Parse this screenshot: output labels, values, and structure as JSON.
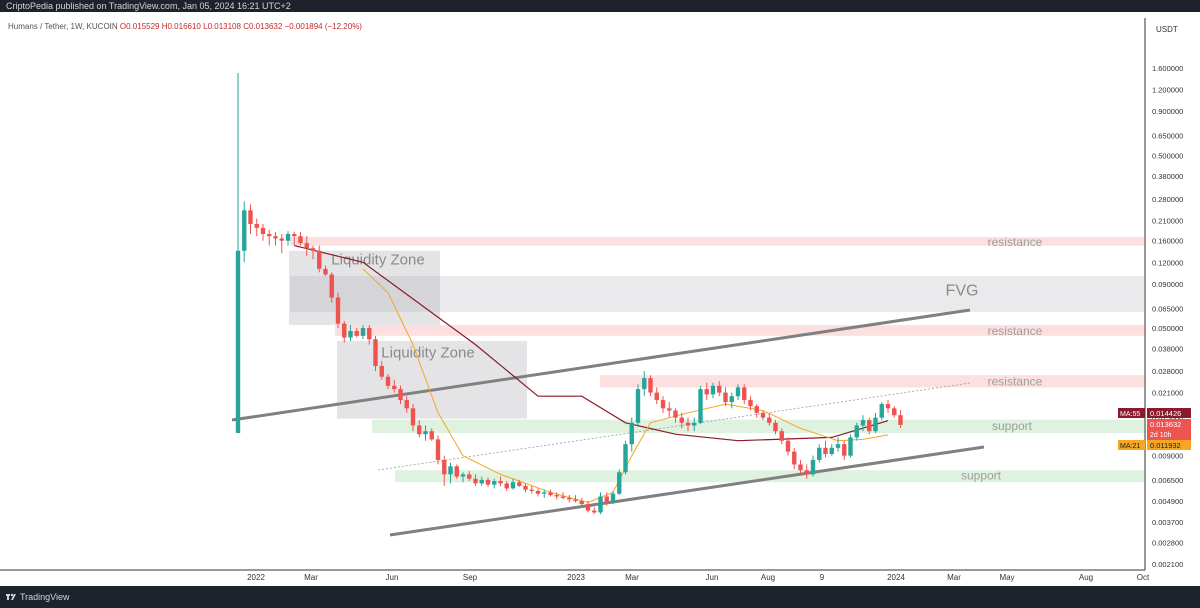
{
  "header": {
    "published": "CriptoPedia published on TradingView.com, Jan 05, 2024 16:21 UTC+2"
  },
  "symbol": {
    "name": "Humans / Tether, 1W, KUCOIN",
    "open": "O0.015529",
    "high": "H0.016610",
    "low": "L0.013108",
    "close": "C0.013632",
    "change": "−0.001894 (−12.20%)"
  },
  "footer": {
    "brand": "TradingView"
  },
  "colors": {
    "up": "#26a69a",
    "down": "#ef5350",
    "ma55": "#8b1a2b",
    "ma21": "#f5a623"
  },
  "chart_data": {
    "type": "candlestick",
    "log_scale": true,
    "currency_label": "USDT",
    "y_ticks": [
      "1.600000",
      "1.200000",
      "0.900000",
      "0.650000",
      "0.500000",
      "0.380000",
      "0.280000",
      "0.210000",
      "0.160000",
      "0.120000",
      "0.090000",
      "0.065000",
      "0.050000",
      "0.038000",
      "0.028000",
      "0.021000",
      "0.015000",
      "0.012000",
      "0.009000",
      "0.006500",
      "0.004900",
      "0.003700",
      "0.002800",
      "0.002100"
    ],
    "x_ticks": [
      "2022",
      "Mar",
      "Jun",
      "Sep",
      "2023",
      "Mar",
      "Jun",
      "Aug",
      "9",
      "2024",
      "Mar",
      "May",
      "Aug",
      "Oct"
    ],
    "price_labels": [
      {
        "text": "MA:55",
        "value": "0.014426"
      },
      {
        "text": "",
        "value": "0.013632",
        "sub": "2d 10h"
      },
      {
        "text": "MA:21",
        "value": "0.011932"
      }
    ],
    "annotations": {
      "zones": [
        {
          "label": "resistance",
          "kind": "resistance"
        },
        {
          "label": "FVG",
          "kind": "fvg"
        },
        {
          "label": "resistance",
          "kind": "resistance"
        },
        {
          "label": "resistance",
          "kind": "resistance"
        },
        {
          "label": "support",
          "kind": "support"
        },
        {
          "label": "support",
          "kind": "support"
        },
        {
          "label": "Liquidity Zone",
          "kind": "liquidity"
        },
        {
          "label": "Liquidity Zone",
          "kind": "liquidity"
        }
      ]
    },
    "candles": [
      [
        0.0122,
        1.5,
        0.0122,
        0.14
      ],
      [
        0.14,
        0.27,
        0.12,
        0.24
      ],
      [
        0.24,
        0.26,
        0.175,
        0.2
      ],
      [
        0.2,
        0.215,
        0.17,
        0.19
      ],
      [
        0.19,
        0.2,
        0.16,
        0.175
      ],
      [
        0.175,
        0.185,
        0.15,
        0.17
      ],
      [
        0.17,
        0.18,
        0.15,
        0.165
      ],
      [
        0.165,
        0.175,
        0.135,
        0.16
      ],
      [
        0.16,
        0.182,
        0.15,
        0.175
      ],
      [
        0.175,
        0.18,
        0.15,
        0.17
      ],
      [
        0.17,
        0.18,
        0.15,
        0.155
      ],
      [
        0.155,
        0.17,
        0.13,
        0.145
      ],
      [
        0.145,
        0.15,
        0.125,
        0.14
      ],
      [
        0.14,
        0.15,
        0.105,
        0.11
      ],
      [
        0.11,
        0.115,
        0.1,
        0.102
      ],
      [
        0.102,
        0.105,
        0.07,
        0.075
      ],
      [
        0.075,
        0.08,
        0.05,
        0.053
      ],
      [
        0.053,
        0.055,
        0.041,
        0.044
      ],
      [
        0.044,
        0.052,
        0.042,
        0.048
      ],
      [
        0.048,
        0.05,
        0.044,
        0.045
      ],
      [
        0.045,
        0.052,
        0.043,
        0.05
      ],
      [
        0.05,
        0.052,
        0.04,
        0.043
      ],
      [
        0.043,
        0.045,
        0.028,
        0.03
      ],
      [
        0.03,
        0.032,
        0.025,
        0.026
      ],
      [
        0.026,
        0.027,
        0.022,
        0.023
      ],
      [
        0.023,
        0.025,
        0.021,
        0.022
      ],
      [
        0.022,
        0.023,
        0.018,
        0.019
      ],
      [
        0.019,
        0.02,
        0.016,
        0.017
      ],
      [
        0.017,
        0.018,
        0.0125,
        0.0135
      ],
      [
        0.0135,
        0.0145,
        0.0115,
        0.012
      ],
      [
        0.012,
        0.0135,
        0.011,
        0.0125
      ],
      [
        0.0125,
        0.013,
        0.011,
        0.0112
      ],
      [
        0.0112,
        0.0118,
        0.008,
        0.0085
      ],
      [
        0.0085,
        0.009,
        0.006,
        0.007
      ],
      [
        0.007,
        0.0082,
        0.0062,
        0.0078
      ],
      [
        0.0078,
        0.008,
        0.0066,
        0.0068
      ],
      [
        0.0068,
        0.0072,
        0.0063,
        0.007
      ],
      [
        0.007,
        0.0073,
        0.0064,
        0.0066
      ],
      [
        0.0066,
        0.007,
        0.006,
        0.0062
      ],
      [
        0.0062,
        0.0068,
        0.006,
        0.0065
      ],
      [
        0.0065,
        0.0067,
        0.0059,
        0.0061
      ],
      [
        0.0061,
        0.0066,
        0.0058,
        0.0064
      ],
      [
        0.0064,
        0.0068,
        0.006,
        0.0062
      ],
      [
        0.0062,
        0.0064,
        0.0056,
        0.0058
      ],
      [
        0.0058,
        0.0066,
        0.0057,
        0.0063
      ],
      [
        0.0063,
        0.0065,
        0.0059,
        0.006
      ],
      [
        0.006,
        0.0062,
        0.0055,
        0.0057
      ],
      [
        0.0057,
        0.006,
        0.0054,
        0.0056
      ],
      [
        0.0056,
        0.0058,
        0.0052,
        0.0054
      ],
      [
        0.0054,
        0.0057,
        0.0051,
        0.0055
      ],
      [
        0.0055,
        0.0057,
        0.0052,
        0.0053
      ],
      [
        0.0053,
        0.0055,
        0.005,
        0.0052
      ],
      [
        0.0052,
        0.0055,
        0.005,
        0.0051
      ],
      [
        0.0051,
        0.0053,
        0.0048,
        0.005
      ],
      [
        0.005,
        0.0053,
        0.0048,
        0.0049
      ],
      [
        0.0049,
        0.0051,
        0.0046,
        0.0047
      ],
      [
        0.0047,
        0.0049,
        0.0042,
        0.0043
      ],
      [
        0.0043,
        0.0045,
        0.0041,
        0.0042
      ],
      [
        0.0042,
        0.0055,
        0.0041,
        0.0052
      ],
      [
        0.0052,
        0.0055,
        0.0046,
        0.0048
      ],
      [
        0.0048,
        0.0056,
        0.0047,
        0.0054
      ],
      [
        0.0054,
        0.0075,
        0.0053,
        0.0072
      ],
      [
        0.0072,
        0.011,
        0.007,
        0.0105
      ],
      [
        0.0105,
        0.015,
        0.0095,
        0.014
      ],
      [
        0.014,
        0.0235,
        0.0135,
        0.022
      ],
      [
        0.022,
        0.028,
        0.02,
        0.0255
      ],
      [
        0.0255,
        0.0265,
        0.02,
        0.021
      ],
      [
        0.021,
        0.0225,
        0.018,
        0.019
      ],
      [
        0.019,
        0.02,
        0.016,
        0.017
      ],
      [
        0.017,
        0.0185,
        0.015,
        0.0165
      ],
      [
        0.0165,
        0.017,
        0.014,
        0.015
      ],
      [
        0.015,
        0.016,
        0.013,
        0.014
      ],
      [
        0.014,
        0.015,
        0.0125,
        0.0135
      ],
      [
        0.0135,
        0.015,
        0.0125,
        0.014
      ],
      [
        0.014,
        0.023,
        0.0138,
        0.022
      ],
      [
        0.022,
        0.024,
        0.019,
        0.0205
      ],
      [
        0.0205,
        0.024,
        0.0195,
        0.023
      ],
      [
        0.023,
        0.0245,
        0.02,
        0.021
      ],
      [
        0.021,
        0.0225,
        0.0175,
        0.0185
      ],
      [
        0.0185,
        0.021,
        0.017,
        0.02
      ],
      [
        0.02,
        0.0235,
        0.019,
        0.0225
      ],
      [
        0.0225,
        0.0235,
        0.018,
        0.019
      ],
      [
        0.019,
        0.02,
        0.0165,
        0.0175
      ],
      [
        0.0175,
        0.018,
        0.015,
        0.016
      ],
      [
        0.016,
        0.0165,
        0.0145,
        0.015
      ],
      [
        0.015,
        0.0158,
        0.0135,
        0.014
      ],
      [
        0.014,
        0.0145,
        0.012,
        0.0125
      ],
      [
        0.0125,
        0.013,
        0.0105,
        0.011
      ],
      [
        0.011,
        0.0115,
        0.009,
        0.0095
      ],
      [
        0.0095,
        0.01,
        0.0075,
        0.008
      ],
      [
        0.008,
        0.0085,
        0.007,
        0.0074
      ],
      [
        0.0074,
        0.008,
        0.0066,
        0.007
      ],
      [
        0.007,
        0.009,
        0.0068,
        0.0085
      ],
      [
        0.0085,
        0.0105,
        0.0082,
        0.01
      ],
      [
        0.01,
        0.011,
        0.0088,
        0.0092
      ],
      [
        0.0092,
        0.0105,
        0.009,
        0.01
      ],
      [
        0.01,
        0.0115,
        0.0095,
        0.0105
      ],
      [
        0.0105,
        0.011,
        0.0085,
        0.009
      ],
      [
        0.009,
        0.012,
        0.0088,
        0.0115
      ],
      [
        0.0115,
        0.014,
        0.011,
        0.0135
      ],
      [
        0.0135,
        0.0155,
        0.0125,
        0.0145
      ],
      [
        0.0145,
        0.015,
        0.012,
        0.0125
      ],
      [
        0.0125,
        0.016,
        0.0122,
        0.015
      ],
      [
        0.015,
        0.0185,
        0.0145,
        0.018
      ],
      [
        0.018,
        0.019,
        0.016,
        0.017
      ],
      [
        0.017,
        0.0175,
        0.015,
        0.0155
      ],
      [
        0.0155,
        0.0166,
        0.0131,
        0.0136
      ]
    ],
    "ma55": [
      [
        9,
        0.15
      ],
      [
        20,
        0.12
      ],
      [
        38,
        0.04
      ],
      [
        48,
        0.02
      ],
      [
        55,
        0.02
      ],
      [
        62,
        0.014
      ],
      [
        70,
        0.012
      ],
      [
        80,
        0.011
      ],
      [
        95,
        0.0115
      ],
      [
        104,
        0.0144
      ]
    ],
    "ma21": [
      [
        20,
        0.11
      ],
      [
        24,
        0.08
      ],
      [
        28,
        0.04
      ],
      [
        32,
        0.016
      ],
      [
        36,
        0.009
      ],
      [
        42,
        0.007
      ],
      [
        50,
        0.0055
      ],
      [
        56,
        0.0048
      ],
      [
        60,
        0.0055
      ],
      [
        63,
        0.009
      ],
      [
        66,
        0.014
      ],
      [
        72,
        0.016
      ],
      [
        78,
        0.018
      ],
      [
        84,
        0.0165
      ],
      [
        90,
        0.013
      ],
      [
        96,
        0.011
      ],
      [
        100,
        0.0112
      ],
      [
        104,
        0.0119
      ]
    ]
  }
}
